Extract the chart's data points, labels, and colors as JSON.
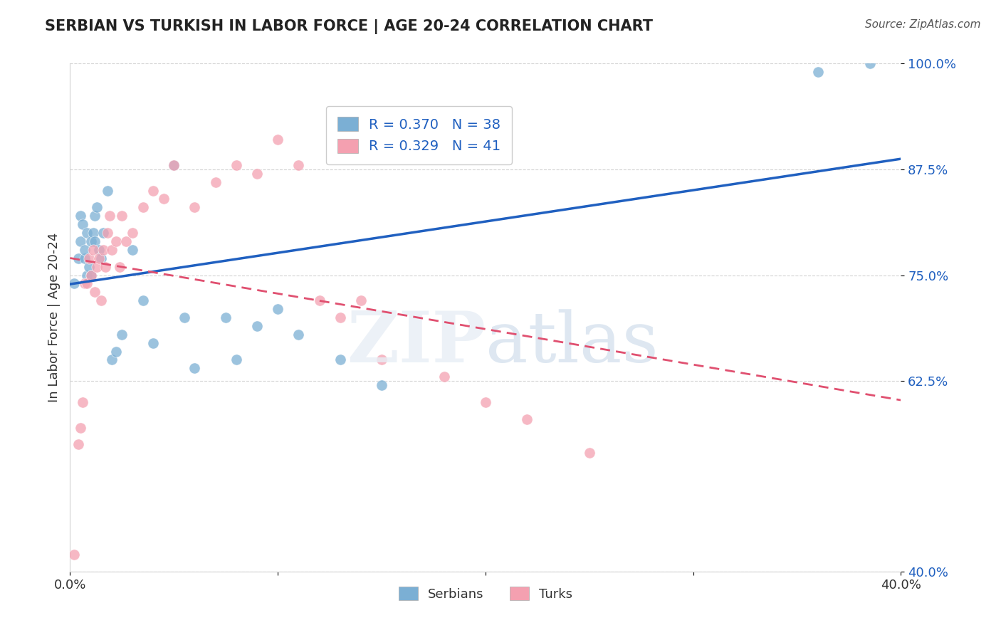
{
  "title": "SERBIAN VS TURKISH IN LABOR FORCE | AGE 20-24 CORRELATION CHART",
  "source": "Source: ZipAtlas.com",
  "xlabel": "",
  "ylabel": "In Labor Force | Age 20-24",
  "xlim": [
    0.0,
    0.4
  ],
  "ylim": [
    0.4,
    1.0
  ],
  "yticks": [
    0.4,
    0.625,
    0.75,
    0.875,
    1.0
  ],
  "ytick_labels": [
    "40.0%",
    "62.5%",
    "75.0%",
    "87.5%",
    "100.0%"
  ],
  "xticks": [
    0.0,
    0.1,
    0.2,
    0.3,
    0.4
  ],
  "xtick_labels": [
    "0.0%",
    "",
    "",
    "",
    "40.0%"
  ],
  "R_serbian": 0.37,
  "N_serbian": 38,
  "R_turkish": 0.329,
  "N_turkish": 41,
  "serbian_color": "#7bafd4",
  "turkish_color": "#f4a0b0",
  "serbian_line_color": "#2060c0",
  "turkish_line_color": "#e05070",
  "watermark": "ZIPatlas",
  "serbian_scatter_x": [
    0.002,
    0.004,
    0.005,
    0.005,
    0.006,
    0.007,
    0.007,
    0.008,
    0.008,
    0.009,
    0.01,
    0.01,
    0.011,
    0.012,
    0.012,
    0.013,
    0.014,
    0.015,
    0.016,
    0.018,
    0.02,
    0.022,
    0.025,
    0.03,
    0.035,
    0.04,
    0.05,
    0.055,
    0.06,
    0.075,
    0.08,
    0.09,
    0.1,
    0.11,
    0.13,
    0.15,
    0.36,
    0.385
  ],
  "serbian_scatter_y": [
    0.74,
    0.77,
    0.82,
    0.79,
    0.81,
    0.77,
    0.78,
    0.75,
    0.8,
    0.76,
    0.79,
    0.75,
    0.8,
    0.79,
    0.82,
    0.83,
    0.78,
    0.77,
    0.8,
    0.85,
    0.65,
    0.66,
    0.68,
    0.78,
    0.72,
    0.67,
    0.88,
    0.7,
    0.64,
    0.7,
    0.65,
    0.69,
    0.71,
    0.68,
    0.65,
    0.62,
    0.99,
    1.0
  ],
  "turkish_scatter_x": [
    0.002,
    0.004,
    0.005,
    0.006,
    0.007,
    0.008,
    0.009,
    0.01,
    0.011,
    0.012,
    0.013,
    0.014,
    0.015,
    0.016,
    0.017,
    0.018,
    0.019,
    0.02,
    0.022,
    0.024,
    0.025,
    0.027,
    0.03,
    0.035,
    0.04,
    0.045,
    0.05,
    0.06,
    0.07,
    0.08,
    0.09,
    0.1,
    0.11,
    0.12,
    0.13,
    0.14,
    0.15,
    0.18,
    0.2,
    0.22,
    0.25
  ],
  "turkish_scatter_y": [
    0.42,
    0.55,
    0.57,
    0.6,
    0.74,
    0.74,
    0.77,
    0.75,
    0.78,
    0.73,
    0.76,
    0.77,
    0.72,
    0.78,
    0.76,
    0.8,
    0.82,
    0.78,
    0.79,
    0.76,
    0.82,
    0.79,
    0.8,
    0.83,
    0.85,
    0.84,
    0.88,
    0.83,
    0.86,
    0.88,
    0.87,
    0.91,
    0.88,
    0.72,
    0.7,
    0.72,
    0.65,
    0.63,
    0.6,
    0.58,
    0.54
  ]
}
